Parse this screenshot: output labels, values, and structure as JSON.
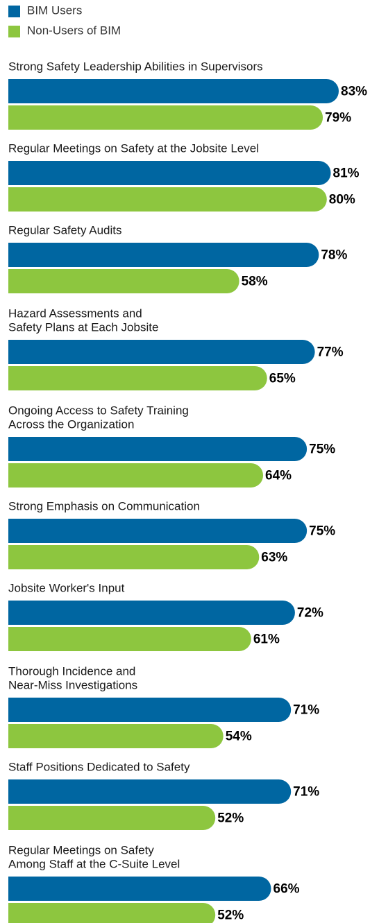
{
  "chart_data": {
    "type": "bar",
    "orientation": "horizontal",
    "categories": [
      [
        "Strong Safety Leadership Abilities in Supervisors"
      ],
      [
        "Regular Meetings on Safety at the Jobsite Level"
      ],
      [
        "Regular Safety Audits"
      ],
      [
        "Hazard Assessments and",
        "Safety Plans at Each Jobsite"
      ],
      [
        "Ongoing Access to Safety Training",
        "Across the Organization"
      ],
      [
        "Strong Emphasis on Communication"
      ],
      [
        "Jobsite Worker's Input"
      ],
      [
        "Thorough Incidence and",
        "Near-Miss Investigations"
      ],
      [
        "Staff Positions Dedicated to Safety"
      ],
      [
        "Regular Meetings on Safety",
        "Among Staff at the C-Suite Level"
      ]
    ],
    "series": [
      {
        "name": "BIM Users",
        "color": "#0066a1",
        "values": [
          83,
          81,
          78,
          77,
          75,
          75,
          72,
          71,
          71,
          66
        ],
        "value_labels": [
          "83%",
          "81%",
          "78%",
          "77%",
          "75%",
          "75%",
          "72%",
          "71%",
          "71%",
          "66%"
        ]
      },
      {
        "name": "Non-Users of BIM",
        "color": "#8dc63f",
        "values": [
          79,
          80,
          58,
          65,
          64,
          63,
          61,
          54,
          52,
          52
        ],
        "value_labels": [
          "79%",
          "80%",
          "58%",
          "65%",
          "64%",
          "63%",
          "61%",
          "54%",
          "52%",
          "52%"
        ]
      }
    ]
  }
}
